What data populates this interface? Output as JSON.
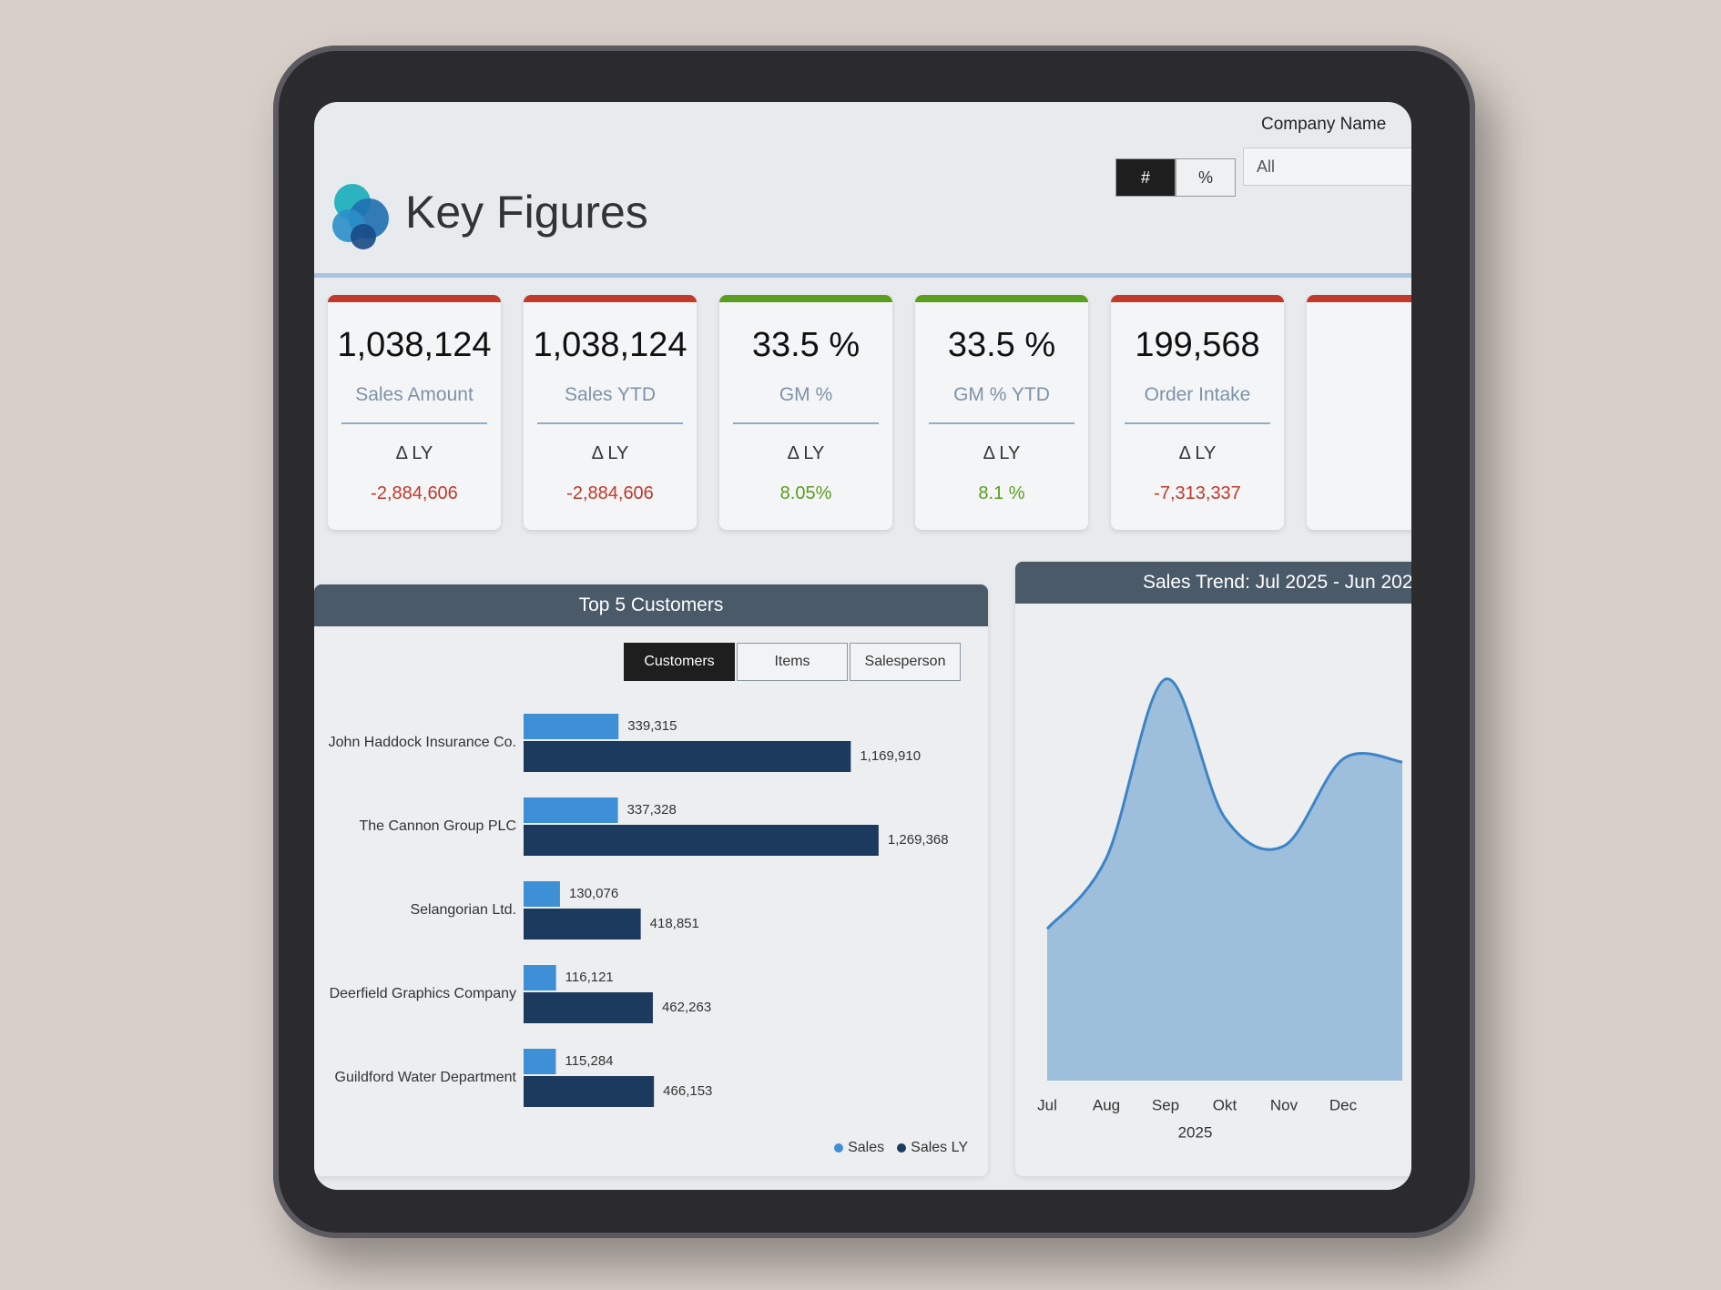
{
  "header": {
    "title": "Key Figures",
    "toggle": {
      "options": [
        "#",
        "%"
      ],
      "active": 0
    },
    "filter_label": "Company Name",
    "filter_value": "All"
  },
  "kpis": [
    {
      "value": "1,038,124",
      "label": "Sales Amount",
      "delta_label": "Δ LY",
      "delta": "-2,884,606",
      "color": "#c0392b"
    },
    {
      "value": "1,038,124",
      "label": "Sales YTD",
      "delta_label": "Δ LY",
      "delta": "-2,884,606",
      "color": "#c0392b"
    },
    {
      "value": "33.5 %",
      "label": "GM %",
      "delta_label": "Δ LY",
      "delta": "8.05%",
      "color": "#5a9e1f"
    },
    {
      "value": "33.5 %",
      "label": "GM % YTD",
      "delta_label": "Δ LY",
      "delta": "8.1 %",
      "color": "#5a9e1f"
    },
    {
      "value": "199,568",
      "label": "Order Intake",
      "delta_label": "Δ LY",
      "delta": "-7,313,337",
      "color": "#c0392b"
    }
  ],
  "chart_data": [
    {
      "type": "hbar",
      "title": "Top 5 Customers",
      "tabs": [
        "Customers",
        "Items",
        "Salesperson"
      ],
      "active_tab": 0,
      "categories": [
        "John Haddock Insurance Co.",
        "The Cannon Group PLC",
        "Selangorian Ltd.",
        "Deerfield Graphics Company",
        "Guildford Water Department"
      ],
      "xlim": [
        0,
        1400000
      ],
      "series": [
        {
          "name": "Sales",
          "color": "#3d8fd6",
          "values": [
            339315,
            337328,
            130076,
            116121,
            115284
          ],
          "value_labels": [
            "339,315",
            "337,328",
            "130,076",
            "116,121",
            "115,284"
          ]
        },
        {
          "name": "Sales LY",
          "color": "#1c3a5e",
          "values": [
            1169910,
            1269368,
            418851,
            462263,
            466153
          ],
          "value_labels": [
            "1,169,910",
            "1,269,368",
            "418,851",
            "462,263",
            "466,153"
          ]
        }
      ]
    },
    {
      "type": "area",
      "title": "Sales Trend: Jul 2025 - Jun 202",
      "categories": [
        "Jul",
        "Aug",
        "Sep",
        "Okt",
        "Nov",
        "Dec",
        null
      ],
      "year_label": "2025",
      "ylim": [
        0,
        450
      ],
      "series": [
        {
          "color": "#3d84c6",
          "values": [
            150,
            220,
            397,
            260,
            232,
            318,
            315
          ]
        }
      ]
    }
  ]
}
